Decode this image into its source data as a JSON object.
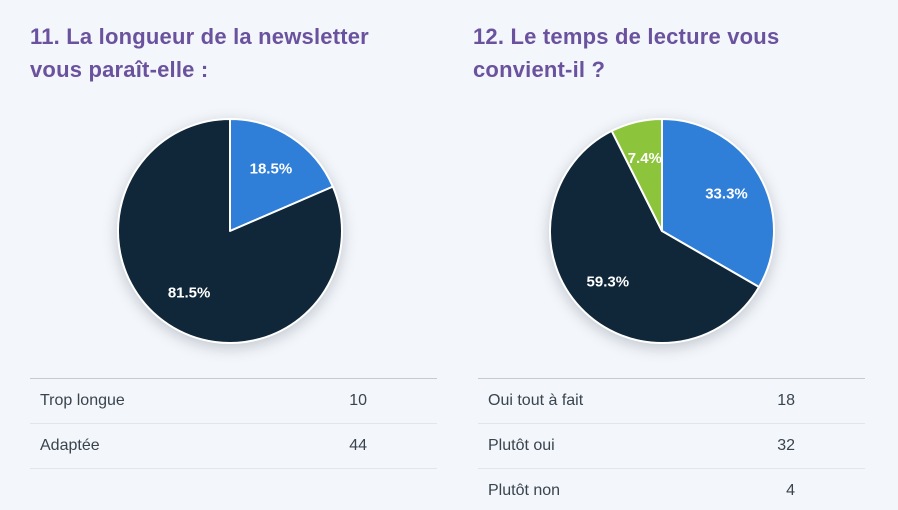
{
  "page": {
    "background_color": "#f3f6fa",
    "title_color": "#6a529e"
  },
  "chart_data": [
    {
      "type": "pie",
      "title": "11. La longueur de la newsletter vous paraît-elle :",
      "categories": [
        "Trop longue",
        "Adaptée"
      ],
      "values": [
        10,
        44
      ],
      "percent_labels": [
        "18.5%",
        "81.5%"
      ],
      "colors": [
        "#2f7ed8",
        "#102639"
      ],
      "start_angle_deg": 0,
      "direction": "clockwise",
      "slice_border_color": "#ffffff",
      "label_color": "#ffffff",
      "labels_inside": true,
      "legend": "none"
    },
    {
      "type": "pie",
      "title": "12. Le temps de lecture vous convient-il ?",
      "categories": [
        "Oui tout à fait",
        "Plutôt oui",
        "Plutôt non"
      ],
      "values": [
        18,
        32,
        4
      ],
      "percent_labels": [
        "33.3%",
        "59.3%",
        "7.4%"
      ],
      "colors": [
        "#2f7ed8",
        "#102639",
        "#8cc43c"
      ],
      "start_angle_deg": 0,
      "direction": "clockwise",
      "slice_border_color": "#ffffff",
      "label_color": "#ffffff",
      "labels_inside": true,
      "legend": "none"
    }
  ]
}
